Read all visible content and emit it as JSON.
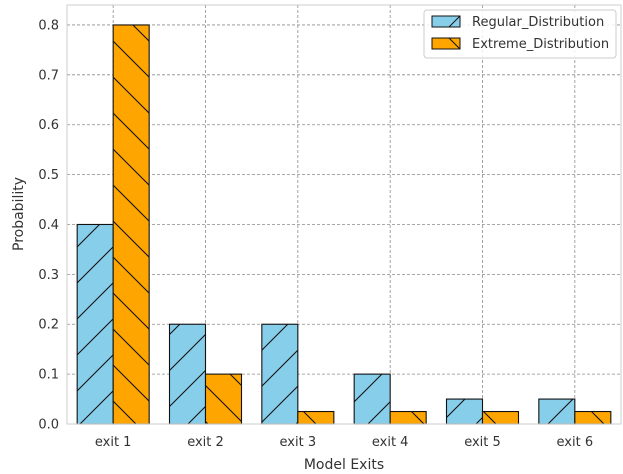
{
  "chart_data": {
    "type": "bar",
    "categories": [
      "exit 1",
      "exit 2",
      "exit 3",
      "exit 4",
      "exit 5",
      "exit 6"
    ],
    "series": [
      {
        "name": "Regular_Distribution",
        "values": [
          0.4,
          0.2,
          0.2,
          0.1,
          0.05,
          0.05
        ],
        "color": "#87CEEB",
        "hatch": "/"
      },
      {
        "name": "Extreme_Distribution",
        "values": [
          0.8,
          0.1,
          0.025,
          0.025,
          0.025,
          0.025
        ],
        "color": "#FFA500",
        "hatch": "\\"
      }
    ],
    "xlabel": "Model Exits",
    "ylabel": "Probability",
    "ylim": [
      0,
      0.84
    ],
    "yticks": [
      0.0,
      0.1,
      0.2,
      0.3,
      0.4,
      0.5,
      0.6,
      0.7,
      0.8
    ],
    "ytick_labels": [
      "0.0",
      "0.1",
      "0.2",
      "0.3",
      "0.4",
      "0.5",
      "0.6",
      "0.7",
      "0.8"
    ],
    "grid": true,
    "legend_position": "top-right"
  }
}
